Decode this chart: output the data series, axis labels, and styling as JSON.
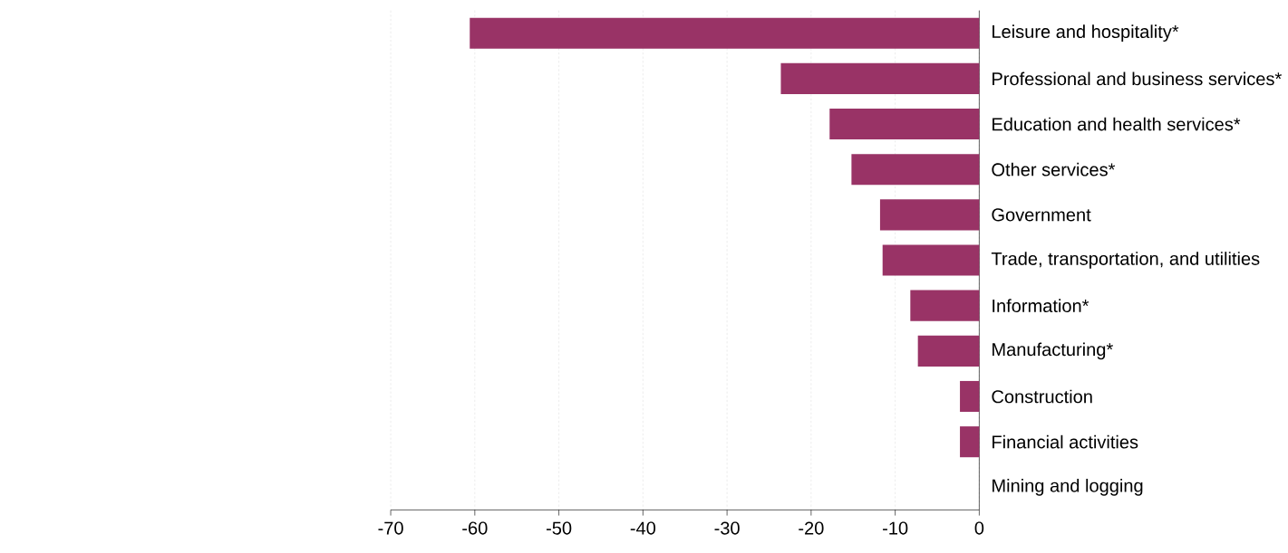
{
  "chart_data": {
    "type": "bar",
    "orientation": "horizontal",
    "categories": [
      "Leisure and hospitality*",
      "Professional and business services*",
      "Education and health services*",
      "Other services*",
      "Government",
      "Trade, transportation, and utilities",
      "Information*",
      "Manufacturing*",
      "Construction",
      "Financial activities",
      "Mining and logging"
    ],
    "values": [
      -60.6,
      -23.6,
      -17.8,
      -15.2,
      -11.8,
      -11.5,
      -8.2,
      -7.3,
      -2.3,
      -2.3,
      0
    ],
    "color": "#993366",
    "xlim": [
      -70,
      0
    ],
    "xticks": [
      -70,
      -60,
      -50,
      -40,
      -30,
      -20,
      -10,
      0
    ],
    "grid": "x"
  }
}
